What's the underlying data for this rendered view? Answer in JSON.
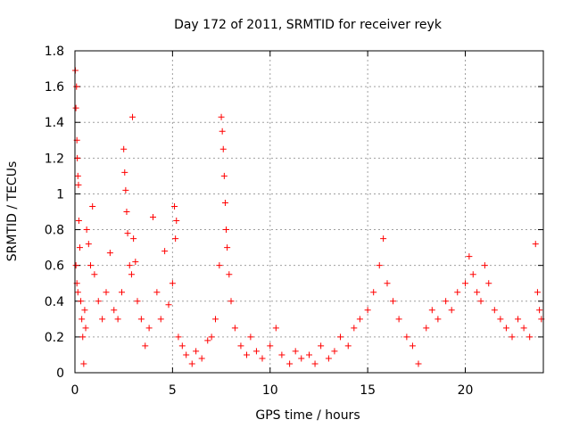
{
  "chart_data": {
    "type": "scatter",
    "title": "Day 172 of 2011, SRMTID for receiver reyk",
    "xlabel": "GPS time / hours",
    "ylabel": "SRMTID / TECUs",
    "xlim": [
      0,
      24
    ],
    "ylim": [
      0,
      1.8
    ],
    "xticks": [
      0,
      5,
      10,
      15,
      20
    ],
    "xtick_labels": [
      "0",
      "5",
      "10",
      "15",
      "20"
    ],
    "yticks": [
      0,
      0.2,
      0.4,
      0.6,
      0.8,
      1,
      1.2,
      1.4,
      1.6,
      1.8
    ],
    "ytick_labels": [
      "0",
      "0.2",
      "0.4",
      "0.6",
      "0.8",
      "1",
      "1.2",
      "1.4",
      "1.6",
      "1.8"
    ],
    "grid": true,
    "marker": "plus",
    "color": "#ff0000",
    "series": [
      {
        "name": "SRMTID",
        "points": [
          [
            0.02,
            1.69
          ],
          [
            0.05,
            1.48
          ],
          [
            0.08,
            1.6
          ],
          [
            0.1,
            1.3
          ],
          [
            0.12,
            1.2
          ],
          [
            0.15,
            1.1
          ],
          [
            0.18,
            1.05
          ],
          [
            0.05,
            0.6
          ],
          [
            0.1,
            0.5
          ],
          [
            0.15,
            0.45
          ],
          [
            0.2,
            0.85
          ],
          [
            0.25,
            0.7
          ],
          [
            0.3,
            0.4
          ],
          [
            0.35,
            0.3
          ],
          [
            0.4,
            0.2
          ],
          [
            0.45,
            0.05
          ],
          [
            0.5,
            0.35
          ],
          [
            0.55,
            0.25
          ],
          [
            0.6,
            0.8
          ],
          [
            0.7,
            0.72
          ],
          [
            0.8,
            0.6
          ],
          [
            0.9,
            0.93
          ],
          [
            1.0,
            0.55
          ],
          [
            1.2,
            0.4
          ],
          [
            1.4,
            0.3
          ],
          [
            1.6,
            0.45
          ],
          [
            1.8,
            0.67
          ],
          [
            2.0,
            0.35
          ],
          [
            2.2,
            0.3
          ],
          [
            2.4,
            0.45
          ],
          [
            2.5,
            1.25
          ],
          [
            2.55,
            1.12
          ],
          [
            2.6,
            1.02
          ],
          [
            2.65,
            0.9
          ],
          [
            2.7,
            0.78
          ],
          [
            2.8,
            0.6
          ],
          [
            2.9,
            0.55
          ],
          [
            2.95,
            1.43
          ],
          [
            3.0,
            0.75
          ],
          [
            3.1,
            0.62
          ],
          [
            3.2,
            0.4
          ],
          [
            3.4,
            0.3
          ],
          [
            3.6,
            0.15
          ],
          [
            3.8,
            0.25
          ],
          [
            4.0,
            0.87
          ],
          [
            4.2,
            0.45
          ],
          [
            4.4,
            0.3
          ],
          [
            4.6,
            0.68
          ],
          [
            4.8,
            0.38
          ],
          [
            5.0,
            0.5
          ],
          [
            5.1,
            0.93
          ],
          [
            5.15,
            0.75
          ],
          [
            5.2,
            0.85
          ],
          [
            5.3,
            0.2
          ],
          [
            5.5,
            0.15
          ],
          [
            5.7,
            0.1
          ],
          [
            6.0,
            0.05
          ],
          [
            6.2,
            0.12
          ],
          [
            6.5,
            0.08
          ],
          [
            6.8,
            0.18
          ],
          [
            7.0,
            0.2
          ],
          [
            7.2,
            0.3
          ],
          [
            7.4,
            0.6
          ],
          [
            7.5,
            1.43
          ],
          [
            7.55,
            1.35
          ],
          [
            7.6,
            1.25
          ],
          [
            7.65,
            1.1
          ],
          [
            7.7,
            0.95
          ],
          [
            7.75,
            0.8
          ],
          [
            7.8,
            0.7
          ],
          [
            7.9,
            0.55
          ],
          [
            8.0,
            0.4
          ],
          [
            8.2,
            0.25
          ],
          [
            8.5,
            0.15
          ],
          [
            8.8,
            0.1
          ],
          [
            9.0,
            0.2
          ],
          [
            9.3,
            0.12
          ],
          [
            9.6,
            0.08
          ],
          [
            10.0,
            0.15
          ],
          [
            10.3,
            0.25
          ],
          [
            10.6,
            0.1
          ],
          [
            11.0,
            0.05
          ],
          [
            11.3,
            0.12
          ],
          [
            11.6,
            0.08
          ],
          [
            12.0,
            0.1
          ],
          [
            12.3,
            0.05
          ],
          [
            12.6,
            0.15
          ],
          [
            13.0,
            0.08
          ],
          [
            13.3,
            0.12
          ],
          [
            13.6,
            0.2
          ],
          [
            14.0,
            0.15
          ],
          [
            14.3,
            0.25
          ],
          [
            14.6,
            0.3
          ],
          [
            15.0,
            0.35
          ],
          [
            15.3,
            0.45
          ],
          [
            15.6,
            0.6
          ],
          [
            15.8,
            0.75
          ],
          [
            16.0,
            0.5
          ],
          [
            16.3,
            0.4
          ],
          [
            16.6,
            0.3
          ],
          [
            17.0,
            0.2
          ],
          [
            17.3,
            0.15
          ],
          [
            17.6,
            0.05
          ],
          [
            18.0,
            0.25
          ],
          [
            18.3,
            0.35
          ],
          [
            18.6,
            0.3
          ],
          [
            19.0,
            0.4
          ],
          [
            19.3,
            0.35
          ],
          [
            19.6,
            0.45
          ],
          [
            20.0,
            0.5
          ],
          [
            20.2,
            0.65
          ],
          [
            20.4,
            0.55
          ],
          [
            20.6,
            0.45
          ],
          [
            20.8,
            0.4
          ],
          [
            21.0,
            0.6
          ],
          [
            21.2,
            0.5
          ],
          [
            21.5,
            0.35
          ],
          [
            21.8,
            0.3
          ],
          [
            22.1,
            0.25
          ],
          [
            22.4,
            0.2
          ],
          [
            22.7,
            0.3
          ],
          [
            23.0,
            0.25
          ],
          [
            23.3,
            0.2
          ],
          [
            23.6,
            0.72
          ],
          [
            23.7,
            0.45
          ],
          [
            23.8,
            0.35
          ],
          [
            23.9,
            0.3
          ]
        ]
      }
    ]
  }
}
